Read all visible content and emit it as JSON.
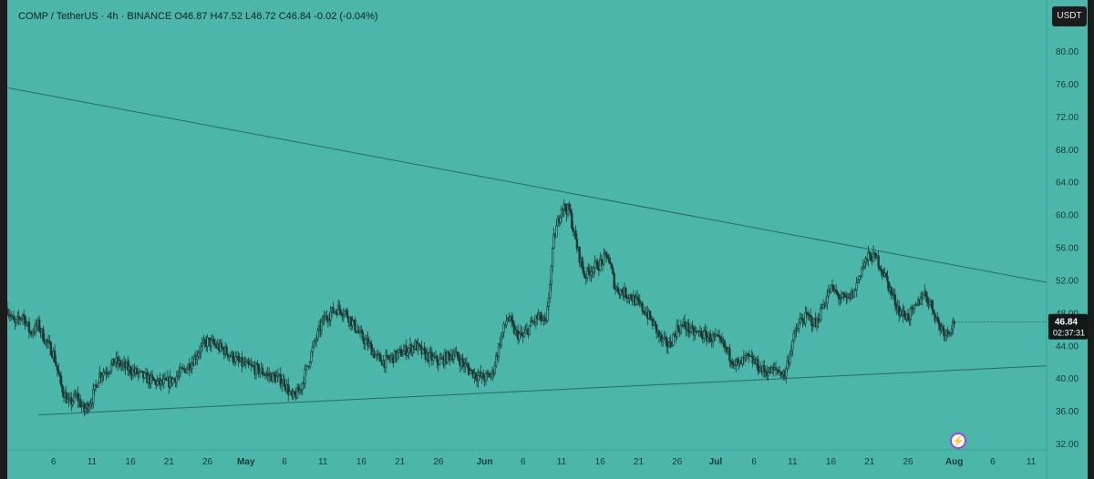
{
  "header": {
    "title": "COMP / TetherUS · 4h · BINANCE O46.87 H47.52 L46.72 C46.84 -0.02 (-0.04%)"
  },
  "currency_badge": "USDT",
  "price_tag": {
    "price": "46.84",
    "countdown": "02:37:31"
  },
  "colors": {
    "background": "#4bb6a9",
    "candle": "#1f3a35",
    "trendline": "#2d6b66",
    "axis_panel": "#4bb6a9",
    "price_tag_bg": "#0f1a18"
  },
  "chart_data": {
    "type": "candlestick",
    "symbol": "COMP / TetherUS",
    "interval": "4h",
    "exchange": "BINANCE",
    "ohlc_last": {
      "open": 46.87,
      "high": 47.52,
      "low": 46.72,
      "close": 46.84,
      "change": -0.02,
      "change_pct": -0.04
    },
    "y_ticks": [
      32,
      36,
      40,
      44,
      48,
      52,
      56,
      60,
      64,
      68,
      72,
      76,
      80
    ],
    "y_tick_labels": [
      "32.00",
      "36.00",
      "40.00",
      "44.00",
      "48.00",
      "52.00",
      "56.00",
      "60.00",
      "64.00",
      "68.00",
      "72.00",
      "76.00",
      "80.00"
    ],
    "ylim": [
      30.5,
      84
    ],
    "xlim": [
      "2022-03-31",
      "2022-08-13"
    ],
    "x_ticks": [
      {
        "date": "2022-04-06",
        "label": "6"
      },
      {
        "date": "2022-04-11",
        "label": "11"
      },
      {
        "date": "2022-04-16",
        "label": "16"
      },
      {
        "date": "2022-04-21",
        "label": "21"
      },
      {
        "date": "2022-04-26",
        "label": "26"
      },
      {
        "date": "2022-05-01",
        "label": "May"
      },
      {
        "date": "2022-05-06",
        "label": "6"
      },
      {
        "date": "2022-05-11",
        "label": "11"
      },
      {
        "date": "2022-05-16",
        "label": "16"
      },
      {
        "date": "2022-05-21",
        "label": "21"
      },
      {
        "date": "2022-05-26",
        "label": "26"
      },
      {
        "date": "2022-06-01",
        "label": "Jun"
      },
      {
        "date": "2022-06-06",
        "label": "6"
      },
      {
        "date": "2022-06-11",
        "label": "11"
      },
      {
        "date": "2022-06-16",
        "label": "16"
      },
      {
        "date": "2022-06-21",
        "label": "21"
      },
      {
        "date": "2022-06-26",
        "label": "26"
      },
      {
        "date": "2022-07-01",
        "label": "Jul"
      },
      {
        "date": "2022-07-06",
        "label": "6"
      },
      {
        "date": "2022-07-11",
        "label": "11"
      },
      {
        "date": "2022-07-16",
        "label": "16"
      },
      {
        "date": "2022-07-21",
        "label": "21"
      },
      {
        "date": "2022-07-26",
        "label": "26"
      },
      {
        "date": "2022-08-01",
        "label": "Aug"
      },
      {
        "date": "2022-08-06",
        "label": "6"
      },
      {
        "date": "2022-08-11",
        "label": "11"
      }
    ],
    "price_path": [
      [
        "2022-03-31",
        48.5
      ],
      [
        "2022-04-01",
        46.5
      ],
      [
        "2022-04-02",
        47.8
      ],
      [
        "2022-04-03",
        45.5
      ],
      [
        "2022-04-04",
        46.5
      ],
      [
        "2022-04-05",
        44.5
      ],
      [
        "2022-04-06",
        43.0
      ],
      [
        "2022-04-07",
        39.0
      ],
      [
        "2022-04-08",
        36.8
      ],
      [
        "2022-04-09",
        37.8
      ],
      [
        "2022-04-10",
        36.0
      ],
      [
        "2022-04-11",
        37.5
      ],
      [
        "2022-04-12",
        40.5
      ],
      [
        "2022-04-13",
        41.0
      ],
      [
        "2022-04-14",
        42.0
      ],
      [
        "2022-04-15",
        41.5
      ],
      [
        "2022-04-16",
        41.0
      ],
      [
        "2022-04-17",
        40.5
      ],
      [
        "2022-04-18",
        40.0
      ],
      [
        "2022-04-19",
        39.6
      ],
      [
        "2022-04-20",
        39.3
      ],
      [
        "2022-04-21",
        39.5
      ],
      [
        "2022-04-22",
        40.2
      ],
      [
        "2022-04-23",
        41.0
      ],
      [
        "2022-04-24",
        42.0
      ],
      [
        "2022-04-25",
        43.5
      ],
      [
        "2022-04-26",
        44.5
      ],
      [
        "2022-04-27",
        44.0
      ],
      [
        "2022-04-28",
        43.5
      ],
      [
        "2022-04-29",
        42.8
      ],
      [
        "2022-04-30",
        42.0
      ],
      [
        "2022-05-01",
        41.5
      ],
      [
        "2022-05-02",
        41.2
      ],
      [
        "2022-05-03",
        40.8
      ],
      [
        "2022-05-04",
        40.3
      ],
      [
        "2022-05-05",
        40.0
      ],
      [
        "2022-05-06",
        39.5
      ],
      [
        "2022-05-07",
        37.5
      ],
      [
        "2022-05-08",
        38.5
      ],
      [
        "2022-05-09",
        41.5
      ],
      [
        "2022-05-10",
        44.5
      ],
      [
        "2022-05-11",
        47.0
      ],
      [
        "2022-05-12",
        48.0
      ],
      [
        "2022-05-13",
        48.5
      ],
      [
        "2022-05-14",
        48.0
      ],
      [
        "2022-05-15",
        46.5
      ],
      [
        "2022-05-16",
        45.0
      ],
      [
        "2022-05-17",
        44.0
      ],
      [
        "2022-05-18",
        42.5
      ],
      [
        "2022-05-19",
        42.0
      ],
      [
        "2022-05-20",
        42.5
      ],
      [
        "2022-05-21",
        43.0
      ],
      [
        "2022-05-22",
        43.5
      ],
      [
        "2022-05-23",
        44.0
      ],
      [
        "2022-05-24",
        43.0
      ],
      [
        "2022-05-25",
        42.5
      ],
      [
        "2022-05-26",
        42.0
      ],
      [
        "2022-05-27",
        42.5
      ],
      [
        "2022-05-28",
        43.0
      ],
      [
        "2022-05-29",
        42.0
      ],
      [
        "2022-05-30",
        41.0
      ],
      [
        "2022-05-31",
        40.3
      ],
      [
        "2022-06-01",
        40.0
      ],
      [
        "2022-06-02",
        40.5
      ],
      [
        "2022-06-03",
        44.5
      ],
      [
        "2022-06-04",
        47.5
      ],
      [
        "2022-06-05",
        45.5
      ],
      [
        "2022-06-06",
        45.0
      ],
      [
        "2022-06-07",
        46.5
      ],
      [
        "2022-06-08",
        47.5
      ],
      [
        "2022-06-09",
        46.5
      ],
      [
        "2022-06-10",
        57.0
      ],
      [
        "2022-06-11",
        61.0
      ],
      [
        "2022-06-12",
        60.5
      ],
      [
        "2022-06-13",
        56.0
      ],
      [
        "2022-06-14",
        52.5
      ],
      [
        "2022-06-15",
        53.5
      ],
      [
        "2022-06-16",
        54.0
      ],
      [
        "2022-06-17",
        55.0
      ],
      [
        "2022-06-18",
        51.0
      ],
      [
        "2022-06-19",
        50.5
      ],
      [
        "2022-06-20",
        50.0
      ],
      [
        "2022-06-21",
        49.0
      ],
      [
        "2022-06-22",
        48.0
      ],
      [
        "2022-06-23",
        46.5
      ],
      [
        "2022-06-24",
        44.5
      ],
      [
        "2022-06-25",
        44.0
      ],
      [
        "2022-06-26",
        46.0
      ],
      [
        "2022-06-27",
        46.5
      ],
      [
        "2022-06-28",
        45.5
      ],
      [
        "2022-06-29",
        45.5
      ],
      [
        "2022-06-30",
        45.0
      ],
      [
        "2022-07-01",
        44.8
      ],
      [
        "2022-07-02",
        44.0
      ],
      [
        "2022-07-03",
        42.5
      ],
      [
        "2022-07-04",
        41.5
      ],
      [
        "2022-07-05",
        42.5
      ],
      [
        "2022-07-06",
        42.0
      ],
      [
        "2022-07-07",
        41.0
      ],
      [
        "2022-07-08",
        40.8
      ],
      [
        "2022-07-09",
        41.0
      ],
      [
        "2022-07-10",
        40.4
      ],
      [
        "2022-07-11",
        44.5
      ],
      [
        "2022-07-12",
        47.0
      ],
      [
        "2022-07-13",
        47.5
      ],
      [
        "2022-07-14",
        46.5
      ],
      [
        "2022-07-15",
        49.0
      ],
      [
        "2022-07-16",
        51.0
      ],
      [
        "2022-07-17",
        50.0
      ],
      [
        "2022-07-18",
        49.5
      ],
      [
        "2022-07-19",
        50.5
      ],
      [
        "2022-07-20",
        53.5
      ],
      [
        "2022-07-21",
        55.0
      ],
      [
        "2022-07-22",
        54.5
      ],
      [
        "2022-07-23",
        52.5
      ],
      [
        "2022-07-24",
        50.0
      ],
      [
        "2022-07-25",
        48.0
      ],
      [
        "2022-07-26",
        47.5
      ],
      [
        "2022-07-27",
        48.5
      ],
      [
        "2022-07-28",
        50.5
      ],
      [
        "2022-07-29",
        49.0
      ],
      [
        "2022-07-30",
        46.5
      ],
      [
        "2022-07-31",
        45.5
      ],
      [
        "2022-08-01",
        46.84
      ]
    ],
    "trendlines": [
      {
        "points": [
          [
            "2022-03-31",
            75.5
          ],
          [
            "2022-08-13",
            51.7
          ]
        ]
      },
      {
        "points": [
          [
            "2022-04-04",
            35.5
          ],
          [
            "2022-08-13",
            41.5
          ]
        ]
      }
    ],
    "last_price": 46.84
  }
}
